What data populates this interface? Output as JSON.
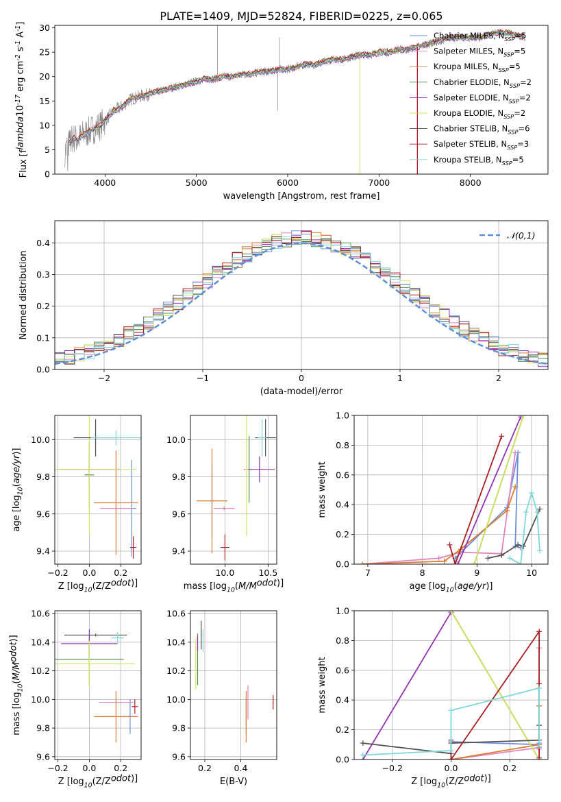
{
  "title": "PLATE=1409, MJD=52824, FIBERID=0225, z=0.065",
  "colors": {
    "Chabrier MILES": "#6a8fdc",
    "Salpeter MILES": "#e083c0",
    "Kroupa MILES": "#d97b2e",
    "Chabrier ELODIE": "#4f8f4f",
    "Salpeter ELODIE": "#9432b3",
    "Kroupa ELODIE": "#cfe55e",
    "Chabrier STELIB": "#505050",
    "Salpeter STELIB": "#a81e22",
    "Kroupa STELIB": "#7fd6da"
  },
  "legend_labels": [
    "Chabrier MILES, N$_{SSP}$=5",
    "Salpeter MILES, N$_{SSP}$=5",
    "Kroupa MILES, N$_{SSP}$=5",
    "Chabrier ELODIE, N$_{SSP}$=2",
    "Salpeter ELODIE, N$_{SSP}$=2",
    "Kroupa ELODIE, N$_{SSP}$=2",
    "Chabrier STELIB, N$_{SSP}$=6",
    "Salpeter STELIB, N$_{SSP}$=3",
    "Kroupa STELIB, N$_{SSP}$=5"
  ],
  "chart_data": [
    {
      "id": "spectrum",
      "type": "line",
      "xlabel": "wavelength [Angstrom, rest frame]",
      "ylabel": "Flux [f$_\\lambda$10$^{-17}$ erg cm$^{-2}$ s$^{-1}$ A$^{-1}$]",
      "xlim": [
        3450,
        8850
      ],
      "ylim": [
        0,
        30.5
      ],
      "xticks": [
        4000,
        5000,
        6000,
        7000,
        8000
      ],
      "yticks": [
        0,
        5,
        10,
        15,
        20,
        25,
        30
      ],
      "grid": false,
      "legend_position": "top-right",
      "data_curve": {
        "name": "data",
        "color": "#808080",
        "x": [
          3560,
          3600,
          3650,
          3700,
          3750,
          3800,
          3850,
          3900,
          3950,
          4000,
          4050,
          4100,
          4150,
          4200,
          4250,
          4300,
          4400,
          4500,
          4600,
          4700,
          4800,
          4900,
          5000,
          5100,
          5200,
          5300,
          5400,
          5500,
          5600,
          5700,
          5800,
          5900,
          6000,
          6100,
          6200,
          6300,
          6400,
          6500,
          6600,
          6700,
          6800,
          6900,
          7000,
          7100,
          7200,
          7300,
          7400,
          7500,
          7600,
          7700,
          7800,
          7900,
          8000,
          8100,
          8200,
          8300,
          8400,
          8500,
          8600
        ],
        "y": [
          4.5,
          6.0,
          7.5,
          7.0,
          8.0,
          8.5,
          9.0,
          9.5,
          10.0,
          11.0,
          12.0,
          13.0,
          13.5,
          14.0,
          15.0,
          15.5,
          16.0,
          16.5,
          17.0,
          17.5,
          18.0,
          18.5,
          19.0,
          19.5,
          19.5,
          20.0,
          20.0,
          20.5,
          20.5,
          21.0,
          21.0,
          21.5,
          21.5,
          22.0,
          22.5,
          22.5,
          23.0,
          23.5,
          23.5,
          24.0,
          24.5,
          24.5,
          25.0,
          25.0,
          25.5,
          25.5,
          26.0,
          26.5,
          27.0,
          27.5,
          28.0,
          28.0,
          28.0,
          28.0,
          28.5,
          29.0,
          29.0,
          28.5,
          28.0
        ]
      },
      "model_curves": [
        {
          "name": "Chabrier MILES",
          "offset": 0.0
        },
        {
          "name": "Salpeter MILES",
          "offset": 0.3
        },
        {
          "name": "Kroupa MILES",
          "offset": -0.2
        },
        {
          "name": "Chabrier ELODIE",
          "offset": 0.2
        },
        {
          "name": "Salpeter ELODIE",
          "offset": -0.3
        },
        {
          "name": "Kroupa ELODIE",
          "offset": 0.1
        },
        {
          "name": "Chabrier STELIB",
          "offset": 0.0
        },
        {
          "name": "Salpeter STELIB",
          "offset": 0.25
        },
        {
          "name": "Kroupa STELIB",
          "offset": -0.1
        }
      ]
    },
    {
      "id": "residuals",
      "type": "line",
      "xlabel": "(data-model)/error",
      "ylabel": "Normed distribution",
      "xlim": [
        -2.5,
        2.5
      ],
      "ylim": [
        0,
        0.47
      ],
      "xticks": [
        -2,
        -1,
        0,
        1,
        2
      ],
      "yticks": [
        0.0,
        0.1,
        0.2,
        0.3,
        0.4
      ],
      "grid": true,
      "legend": "$\\mathcal{N}(0,1)$",
      "legend_position": "top-right",
      "normal_curve": {
        "name": "N(0,1)",
        "color": "#5c8fd6",
        "style": "dashed"
      },
      "bin_width": 0.1
    },
    {
      "id": "age_vs_Z",
      "type": "errorbar",
      "xlabel": "Z [log$_{10}$(Z/Z$_\\odot$)]",
      "ylabel": "age  [log$_{10}$($age/yr$)]",
      "xlim": [
        -0.22,
        0.33
      ],
      "ylim": [
        9.33,
        10.13
      ],
      "xticks": [
        -0.2,
        0.0,
        0.2
      ],
      "yticks": [
        9.4,
        9.6,
        9.8,
        10.0
      ],
      "grid": true,
      "points": [
        {
          "series": "Chabrier MILES",
          "x": 0.27,
          "xerr": 0.03,
          "y": 9.63,
          "yerr": 0.26
        },
        {
          "series": "Salpeter MILES",
          "x": 0.17,
          "xerr": 0.1,
          "y": 9.63,
          "yerr": 0.01
        },
        {
          "series": "Kroupa MILES",
          "x": 0.17,
          "xerr": 0.14,
          "y": 9.66,
          "yerr": 0.28
        },
        {
          "series": "Chabrier ELODIE",
          "x": 0.0,
          "xerr": 0.03,
          "y": 9.81,
          "yerr": 0.18
        },
        {
          "series": "Salpeter ELODIE",
          "x": 0.0,
          "xerr": 0.2,
          "y": 9.84,
          "yerr": 0.07
        },
        {
          "series": "Kroupa ELODIE",
          "x": 0.0,
          "xerr": 0.3,
          "y": 9.84,
          "yerr": 0.35
        },
        {
          "series": "Chabrier STELIB",
          "x": 0.04,
          "xerr": 0.14,
          "y": 10.01,
          "yerr": 0.1
        },
        {
          "series": "Salpeter STELIB",
          "x": 0.28,
          "xerr": 0.02,
          "y": 9.42,
          "yerr": 0.06
        },
        {
          "series": "Kroupa STELIB",
          "x": 0.17,
          "xerr": 0.16,
          "y": 10.01,
          "yerr": 0.04
        }
      ]
    },
    {
      "id": "age_vs_mass",
      "type": "errorbar",
      "xlabel": "mass [log$_{10}$($M/M_\\odot$)]",
      "ylabel": "",
      "xlim": [
        9.6,
        10.6
      ],
      "ylim": [
        9.33,
        10.13
      ],
      "xticks": [
        10.0,
        10.5
      ],
      "yticks": [
        9.4,
        9.6,
        9.8,
        10.0
      ],
      "grid": true,
      "points": [
        {
          "series": "Chabrier MILES",
          "x": 9.85,
          "xerr": 0.02,
          "y": 9.67,
          "yerr": 0.2
        },
        {
          "series": "Salpeter MILES",
          "x": 9.99,
          "xerr": 0.12,
          "y": 9.63,
          "yerr": 0.01
        },
        {
          "series": "Kroupa MILES",
          "x": 9.85,
          "xerr": 0.18,
          "y": 9.67,
          "yerr": 0.28
        },
        {
          "series": "Chabrier ELODIE",
          "x": 10.28,
          "xerr": 0.02,
          "y": 9.84,
          "yerr": 0.18
        },
        {
          "series": "Salpeter ELODIE",
          "x": 10.4,
          "xerr": 0.18,
          "y": 9.84,
          "yerr": 0.07
        },
        {
          "series": "Kroupa ELODIE",
          "x": 10.25,
          "xerr": 0.02,
          "y": 9.84,
          "yerr": 0.36
        },
        {
          "series": "Chabrier STELIB",
          "x": 10.47,
          "xerr": 0.12,
          "y": 10.01,
          "yerr": 0.1
        },
        {
          "series": "Salpeter STELIB",
          "x": 10.0,
          "xerr": 0.05,
          "y": 9.42,
          "yerr": 0.07
        },
        {
          "series": "Kroupa STELIB",
          "x": 10.43,
          "xerr": 0.05,
          "y": 10.01,
          "yerr": 0.1
        }
      ]
    },
    {
      "id": "weight_vs_age",
      "type": "line",
      "xlabel": "age  [log$_{10}$($age/yr$)]",
      "ylabel": "mass weight",
      "xlim": [
        6.75,
        10.3
      ],
      "ylim": [
        0,
        1.0
      ],
      "xticks": [
        7,
        8,
        9,
        10
      ],
      "yticks": [
        0.0,
        0.2,
        0.4,
        0.6,
        0.8,
        1.0
      ],
      "grid": true,
      "series": [
        {
          "name": "Chabrier MILES",
          "x": [
            8.6,
            9.55,
            9.75,
            9.7,
            9.8
          ],
          "y": [
            0.04,
            0.38,
            0.75,
            0.12,
            0.11
          ]
        },
        {
          "name": "Salpeter MILES",
          "x": [
            6.9,
            8.3,
            8.7,
            9.45,
            9.7
          ],
          "y": [
            0.0,
            0.04,
            0.08,
            0.07,
            0.75
          ]
        },
        {
          "name": "Kroupa MILES",
          "x": [
            6.9,
            8.4,
            8.7,
            9.55,
            9.7
          ],
          "y": [
            0.0,
            0.02,
            0.1,
            0.36,
            0.52
          ]
        },
        {
          "name": "Chabrier ELODIE",
          "x": [
            8.95,
            9.85
          ],
          "y": [
            0.0,
            1.0
          ]
        },
        {
          "name": "Salpeter ELODIE",
          "x": [
            8.65,
            9.8
          ],
          "y": [
            0.0,
            0.99
          ]
        },
        {
          "name": "Kroupa ELODIE",
          "x": [
            8.95,
            9.85
          ],
          "y": [
            0.0,
            1.0
          ]
        },
        {
          "name": "Chabrier STELIB",
          "x": [
            9.2,
            9.45,
            9.75,
            9.85,
            10.15
          ],
          "y": [
            0.04,
            0.06,
            0.13,
            0.12,
            0.37
          ]
        },
        {
          "name": "Salpeter STELIB",
          "x": [
            8.5,
            8.6,
            9.45
          ],
          "y": [
            0.13,
            0.0,
            0.86
          ]
        },
        {
          "name": "Kroupa STELIB",
          "x": [
            9.6,
            9.8,
            9.9,
            10.0,
            10.1,
            10.15
          ],
          "y": [
            0.04,
            0.0,
            0.35,
            0.48,
            0.35,
            0.09
          ]
        }
      ]
    },
    {
      "id": "mass_vs_Z",
      "type": "errorbar",
      "xlabel": "Z [log$_{10}$(Z/Z$_\\odot$)]",
      "ylabel": "mass [log$_{10}$($M/M_\\odot$)]",
      "xlim": [
        -0.22,
        0.33
      ],
      "ylim": [
        9.58,
        10.62
      ],
      "xticks": [
        -0.2,
        0.0,
        0.2
      ],
      "yticks": [
        9.6,
        9.8,
        10.0,
        10.2,
        10.4,
        10.6
      ],
      "grid": true,
      "points": [
        {
          "series": "Chabrier MILES",
          "x": 0.26,
          "xerr": 0.02,
          "y": 9.88,
          "yerr": 0.12
        },
        {
          "series": "Salpeter MILES",
          "x": 0.17,
          "xerr": 0.11,
          "y": 9.98,
          "yerr": 0.01
        },
        {
          "series": "Kroupa MILES",
          "x": 0.17,
          "xerr": 0.14,
          "y": 9.88,
          "yerr": 0.18
        },
        {
          "series": "Chabrier ELODIE",
          "x": 0.0,
          "xerr": 0.22,
          "y": 10.28,
          "yerr": 0.18
        },
        {
          "series": "Salpeter ELODIE",
          "x": 0.0,
          "xerr": 0.18,
          "y": 10.39,
          "yerr": 0.1
        },
        {
          "series": "Kroupa ELODIE",
          "x": 0.0,
          "xerr": 0.29,
          "y": 10.25,
          "yerr": 0.16
        },
        {
          "series": "Chabrier STELIB",
          "x": 0.04,
          "xerr": 0.2,
          "y": 10.45,
          "yerr": 0.01
        },
        {
          "series": "Salpeter STELIB",
          "x": 0.29,
          "xerr": 0.02,
          "y": 9.95,
          "yerr": 0.05
        },
        {
          "series": "Kroupa STELIB",
          "x": 0.18,
          "xerr": 0.04,
          "y": 10.43,
          "yerr": 0.04
        }
      ]
    },
    {
      "id": "mass_vs_ebv",
      "type": "errorbar",
      "xlabel": "E(B-V)",
      "ylabel": "",
      "xlim": [
        0.12,
        0.6
      ],
      "ylim": [
        9.58,
        10.62
      ],
      "xticks": [
        0.2,
        0.4
      ],
      "yticks": [
        9.6,
        9.8,
        10.0,
        10.2,
        10.4,
        10.6
      ],
      "grid": true,
      "points": [
        {
          "series": "Chabrier MILES",
          "x": 0.43,
          "xerr": 0.002,
          "y": 9.88,
          "yerr": 0.12
        },
        {
          "series": "Salpeter MILES",
          "x": 0.44,
          "xerr": 0.002,
          "y": 9.98,
          "yerr": 0.12
        },
        {
          "series": "Kroupa MILES",
          "x": 0.43,
          "xerr": 0.002,
          "y": 9.88,
          "yerr": 0.18
        },
        {
          "series": "Chabrier ELODIE",
          "x": 0.16,
          "xerr": 0.002,
          "y": 10.28,
          "yerr": 0.18
        },
        {
          "series": "Salpeter ELODIE",
          "x": 0.16,
          "xerr": 0.002,
          "y": 10.39,
          "yerr": 0.05
        },
        {
          "series": "Kroupa ELODIE",
          "x": 0.15,
          "xerr": 0.002,
          "y": 10.25,
          "yerr": 0.18
        },
        {
          "series": "Chabrier STELIB",
          "x": 0.18,
          "xerr": 0.002,
          "y": 10.45,
          "yerr": 0.1
        },
        {
          "series": "Salpeter STELIB",
          "x": 0.58,
          "xerr": 0.002,
          "y": 9.98,
          "yerr": 0.05
        },
        {
          "series": "Kroupa STELIB",
          "x": 0.19,
          "xerr": 0.002,
          "y": 10.41,
          "yerr": 0.08
        }
      ]
    },
    {
      "id": "weight_vs_Z",
      "type": "line",
      "xlabel": "Z [log$_{10}$(Z/Z$_\\odot$)]",
      "ylabel": "mass weight",
      "xlim": [
        -0.33,
        0.33
      ],
      "ylim": [
        0,
        1.0
      ],
      "xticks": [
        -0.2,
        0.0,
        0.2
      ],
      "yticks": [
        0.0,
        0.2,
        0.4,
        0.6,
        0.8,
        1.0
      ],
      "grid": true,
      "series": [
        {
          "name": "Chabrier MILES",
          "x": [
            0.0,
            0.0,
            0.3,
            0.3,
            0.3
          ],
          "y": [
            0.0,
            0.12,
            0.1,
            0.36,
            0.11
          ]
        },
        {
          "name": "Salpeter MILES",
          "x": [
            0.0,
            0.3,
            0.3,
            0.3
          ],
          "y": [
            0.0,
            0.08,
            0.75,
            0.07
          ]
        },
        {
          "name": "Kroupa MILES",
          "x": [
            0.0,
            0.3,
            0.3
          ],
          "y": [
            0.0,
            0.1,
            0.36
          ]
        },
        {
          "name": "Chabrier ELODIE",
          "x": [
            0.0,
            0.3
          ],
          "y": [
            1.0,
            0.0
          ]
        },
        {
          "name": "Salpeter ELODIE",
          "x": [
            -0.3,
            0.0
          ],
          "y": [
            0.0,
            0.99
          ]
        },
        {
          "name": "Kroupa ELODIE",
          "x": [
            0.0,
            0.3
          ],
          "y": [
            1.0,
            0.0
          ]
        },
        {
          "name": "Chabrier STELIB",
          "x": [
            -0.3,
            0.0,
            0.0,
            0.3,
            0.3
          ],
          "y": [
            0.11,
            0.04,
            0.11,
            0.13,
            0.23
          ]
        },
        {
          "name": "Salpeter STELIB",
          "x": [
            0.0,
            0.0,
            0.3,
            0.3,
            0.3
          ],
          "y": [
            0.13,
            0.0,
            0.86,
            0.51,
            0.01
          ]
        },
        {
          "name": "Kroupa STELIB",
          "x": [
            -0.3,
            0.0,
            0.0,
            0.3,
            0.3
          ],
          "y": [
            0.03,
            0.06,
            0.33,
            0.48,
            0.09
          ]
        }
      ]
    }
  ]
}
